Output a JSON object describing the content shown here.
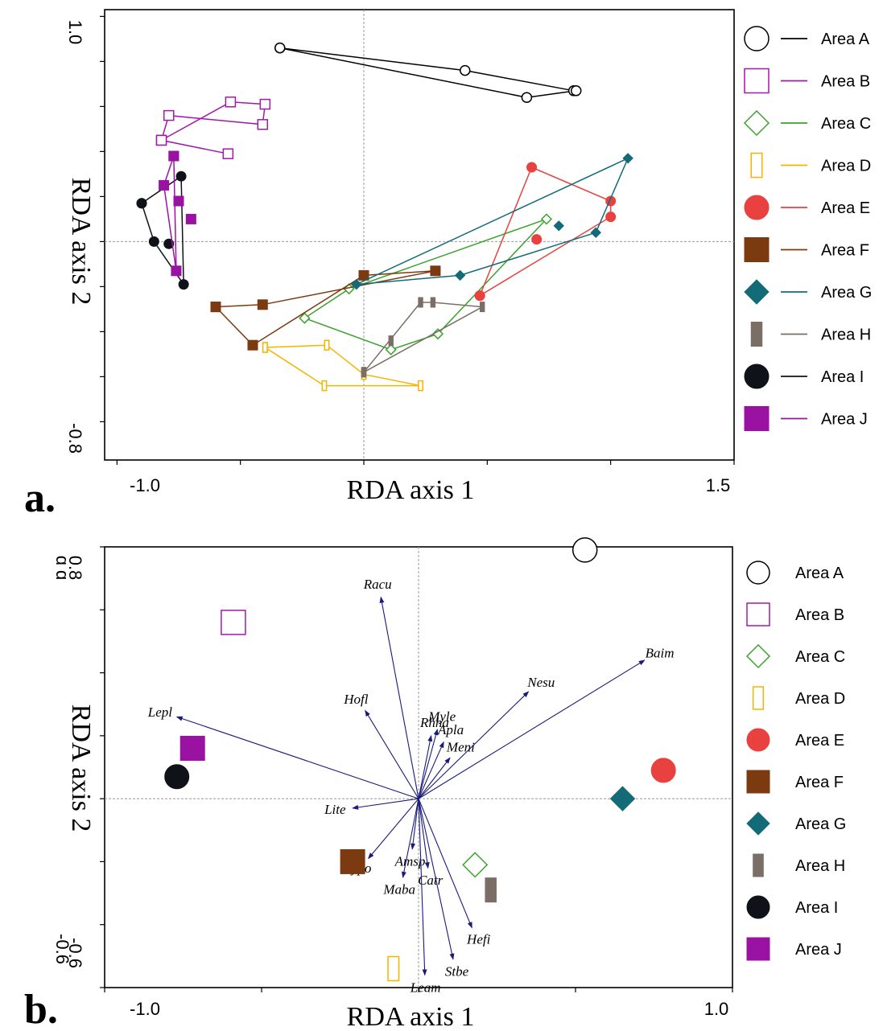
{
  "colors": {
    "A": "#000000",
    "B": "#a01aa8",
    "C": "#3aa32c",
    "D": "#f5b400",
    "E": "#e8413f",
    "F": "#7b3a10",
    "G": "#136b78",
    "H": "#7a6e66",
    "I": "#0f1218",
    "J": "#9a12a2",
    "arrow": "#1a1a7a"
  },
  "legend": [
    {
      "key": "A",
      "label": "Area A",
      "marker": "open-circle"
    },
    {
      "key": "B",
      "label": "Area B",
      "marker": "open-square"
    },
    {
      "key": "C",
      "label": "Area C",
      "marker": "open-diamond"
    },
    {
      "key": "D",
      "label": "Area D",
      "marker": "open-rect"
    },
    {
      "key": "E",
      "label": "Area E",
      "marker": "filled-circle"
    },
    {
      "key": "F",
      "label": "Area F",
      "marker": "filled-square"
    },
    {
      "key": "G",
      "label": "Area G",
      "marker": "filled-diamond"
    },
    {
      "key": "H",
      "label": "Area H",
      "marker": "filled-rect"
    },
    {
      "key": "I",
      "label": "Area I",
      "marker": "filled-circle"
    },
    {
      "key": "J",
      "label": "Area J",
      "marker": "filled-square"
    }
  ],
  "chart_data": [
    {
      "type": "scatter",
      "panel": "a.",
      "xlabel": "RDA axis 1",
      "ylabel": "RDA axis 2",
      "xlim": [
        -1.0,
        1.5
      ],
      "ylim": [
        -0.8,
        1.0
      ],
      "x_tick_labels": [
        "-1.0",
        "1.5"
      ],
      "y_tick_labels": [
        "1.0",
        "-0.8"
      ],
      "series": [
        {
          "key": "A",
          "name": "Area A",
          "points": [
            [
              -0.34,
              0.86
            ],
            [
              0.41,
              0.76
            ],
            [
              0.85,
              0.67
            ],
            [
              0.86,
              0.67
            ],
            [
              0.66,
              0.64
            ],
            [
              -0.34,
              0.86
            ]
          ]
        },
        {
          "key": "B",
          "name": "Area B",
          "points": [
            [
              -0.82,
              0.45
            ],
            [
              -0.54,
              0.62
            ],
            [
              -0.4,
              0.61
            ],
            [
              -0.41,
              0.52
            ],
            [
              -0.79,
              0.56
            ],
            [
              -0.82,
              0.45
            ],
            [
              -0.55,
              0.39
            ]
          ]
        },
        {
          "key": "C",
          "name": "Area C",
          "points": [
            [
              -0.24,
              -0.34
            ],
            [
              0.11,
              -0.48
            ],
            [
              0.3,
              -0.41
            ],
            [
              0.74,
              0.1
            ],
            [
              -0.06,
              -0.21
            ],
            [
              -0.24,
              -0.34
            ]
          ]
        },
        {
          "key": "D",
          "name": "Area D",
          "points": [
            [
              -0.4,
              -0.47
            ],
            [
              -0.15,
              -0.46
            ],
            [
              0.0,
              -0.59
            ],
            [
              0.23,
              -0.64
            ],
            [
              -0.16,
              -0.64
            ],
            [
              -0.4,
              -0.47
            ]
          ]
        },
        {
          "key": "E",
          "name": "Area E",
          "points": [
            [
              0.47,
              -0.24
            ],
            [
              0.68,
              0.33
            ],
            [
              1.0,
              0.18
            ],
            [
              1.0,
              0.11
            ],
            [
              0.47,
              -0.24
            ]
          ],
          "extra_points": [
            [
              0.7,
              0.01
            ]
          ]
        },
        {
          "key": "F",
          "name": "Area F",
          "points": [
            [
              -0.6,
              -0.29
            ],
            [
              -0.45,
              -0.46
            ],
            [
              0.0,
              -0.15
            ],
            [
              0.29,
              -0.13
            ],
            [
              -0.41,
              -0.28
            ],
            [
              -0.6,
              -0.29
            ]
          ]
        },
        {
          "key": "G",
          "name": "Area G",
          "points": [
            [
              -0.03,
              -0.19
            ],
            [
              1.07,
              0.37
            ],
            [
              0.94,
              0.04
            ],
            [
              0.39,
              -0.15
            ],
            [
              -0.03,
              -0.19
            ]
          ],
          "extra_points": [
            [
              0.79,
              0.07
            ]
          ]
        },
        {
          "key": "H",
          "name": "Area H",
          "points": [
            [
              0.0,
              -0.58
            ],
            [
              0.23,
              -0.27
            ],
            [
              0.28,
              -0.27
            ],
            [
              0.48,
              -0.29
            ],
            [
              0.0,
              -0.58
            ]
          ],
          "extra_points": [
            [
              0.11,
              -0.44
            ]
          ]
        },
        {
          "key": "I",
          "name": "Area I",
          "points": [
            [
              -0.9,
              0.17
            ],
            [
              -0.74,
              0.29
            ],
            [
              -0.73,
              -0.19
            ],
            [
              -0.85,
              0.0
            ],
            [
              -0.9,
              0.17
            ]
          ],
          "extra_points": [
            [
              -0.79,
              -0.01
            ]
          ]
        },
        {
          "key": "J",
          "name": "Area J",
          "points": [
            [
              -0.77,
              0.38
            ],
            [
              -0.76,
              -0.13
            ],
            [
              -0.81,
              0.25
            ],
            [
              -0.77,
              0.38
            ]
          ],
          "extra_points": [
            [
              -0.75,
              0.18
            ],
            [
              -0.7,
              0.1
            ]
          ]
        }
      ]
    },
    {
      "type": "scatter",
      "panel": "b.",
      "xlabel": "RDA axis 1",
      "ylabel": "RDA axis 2",
      "xlim": [
        -1.0,
        1.0
      ],
      "ylim": [
        -0.6,
        0.8
      ],
      "x_tick_labels": [
        "-1.0",
        "1.0"
      ],
      "y_tick_labels": [
        "0.8",
        "-0.6"
      ],
      "y_tick_overprint": [
        "ɑ ɑ",
        "-0.6"
      ],
      "centroids": [
        {
          "key": "A",
          "x": 0.53,
          "y": 0.79
        },
        {
          "key": "B",
          "x": -0.59,
          "y": 0.56
        },
        {
          "key": "C",
          "x": 0.18,
          "y": -0.21
        },
        {
          "key": "D",
          "x": -0.08,
          "y": -0.54
        },
        {
          "key": "E",
          "x": 0.78,
          "y": 0.09
        },
        {
          "key": "F",
          "x": -0.21,
          "y": -0.2
        },
        {
          "key": "G",
          "x": 0.65,
          "y": 0.0
        },
        {
          "key": "H",
          "x": 0.23,
          "y": -0.29
        },
        {
          "key": "I",
          "x": -0.77,
          "y": 0.07
        },
        {
          "key": "J",
          "x": -0.72,
          "y": 0.16
        }
      ],
      "species_vectors": [
        {
          "name": "Racu",
          "x": -0.12,
          "y": 0.64
        },
        {
          "name": "Lepl",
          "x": -0.77,
          "y": 0.26
        },
        {
          "name": "Hofl",
          "x": -0.17,
          "y": 0.28
        },
        {
          "name": "Rhha",
          "x": 0.04,
          "y": 0.2
        },
        {
          "name": "Myle",
          "x": 0.06,
          "y": 0.22
        },
        {
          "name": "Apla",
          "x": 0.08,
          "y": 0.18
        },
        {
          "name": "Meni",
          "x": 0.1,
          "y": 0.13
        },
        {
          "name": "Nesu",
          "x": 0.35,
          "y": 0.34
        },
        {
          "name": "Baim",
          "x": 0.72,
          "y": 0.44
        },
        {
          "name": "Lite",
          "x": -0.21,
          "y": -0.03
        },
        {
          "name": "Cypo",
          "x": -0.16,
          "y": -0.19
        },
        {
          "name": "Amsp",
          "x": -0.02,
          "y": -0.16
        },
        {
          "name": "Maba",
          "x": -0.05,
          "y": -0.25
        },
        {
          "name": "Catr",
          "x": 0.03,
          "y": -0.22
        },
        {
          "name": "Hefi",
          "x": 0.17,
          "y": -0.41
        },
        {
          "name": "Stbe",
          "x": 0.11,
          "y": -0.51
        },
        {
          "name": "Leam",
          "x": 0.02,
          "y": -0.56
        }
      ]
    }
  ]
}
